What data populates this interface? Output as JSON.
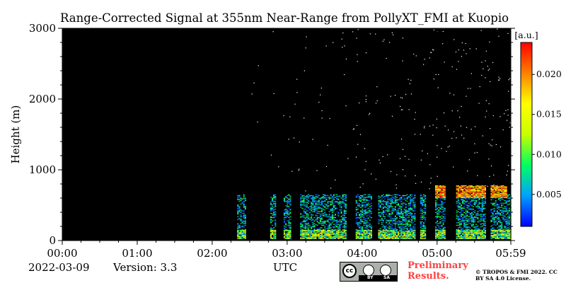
{
  "chart_data": {
    "type": "heatmap",
    "title": "Range-Corrected Signal at 355nm Near-Range from PollyXT_FMI at Kuopio",
    "xlabel": "UTC",
    "ylabel": "Height (m)",
    "x_tick_labels": [
      "00:00",
      "01:00",
      "02:00",
      "03:00",
      "04:00",
      "05:00",
      "05:59"
    ],
    "x_tick_minutes": [
      0,
      60,
      120,
      180,
      240,
      300,
      359
    ],
    "xlim_minutes": [
      0,
      359
    ],
    "y_ticks": [
      0,
      1000,
      2000,
      3000
    ],
    "ylim": [
      0,
      3000
    ],
    "colorbar": {
      "label": "[a.u.]",
      "ticks": [
        0.005,
        0.01,
        0.015,
        0.02
      ],
      "tick_labels": [
        "0.005",
        "0.010",
        "0.015",
        "0.020"
      ],
      "range": [
        0.001,
        0.024
      ],
      "colormap": [
        "#0000ff",
        "#00a0ff",
        "#00ff60",
        "#c8ff00",
        "#ffff00",
        "#ff8000",
        "#ff0000"
      ]
    },
    "background_color": "#000000",
    "measurement_start_minute": 140,
    "features": [
      {
        "name": "surface layer",
        "height_range": [
          20,
          150
        ],
        "value_range": [
          0.003,
          0.018
        ]
      },
      {
        "name": "boundary layer",
        "height_range": [
          150,
          650
        ],
        "value_range": [
          0.002,
          0.01
        ]
      },
      {
        "name": "aerosol/cloud layer",
        "height_range": [
          600,
          780
        ],
        "time_range_minutes": [
          290,
          355
        ],
        "value_range": [
          0.015,
          0.024
        ]
      }
    ]
  },
  "footer": {
    "date": "2022-03-09",
    "version": "Version: 3.3",
    "preliminary": "Preliminary Results.",
    "copyright": "© TROPOS & FMI 2022. CC BY SA 4.0 License.",
    "license_badge_by": "BY",
    "license_badge_sa": "SA"
  }
}
